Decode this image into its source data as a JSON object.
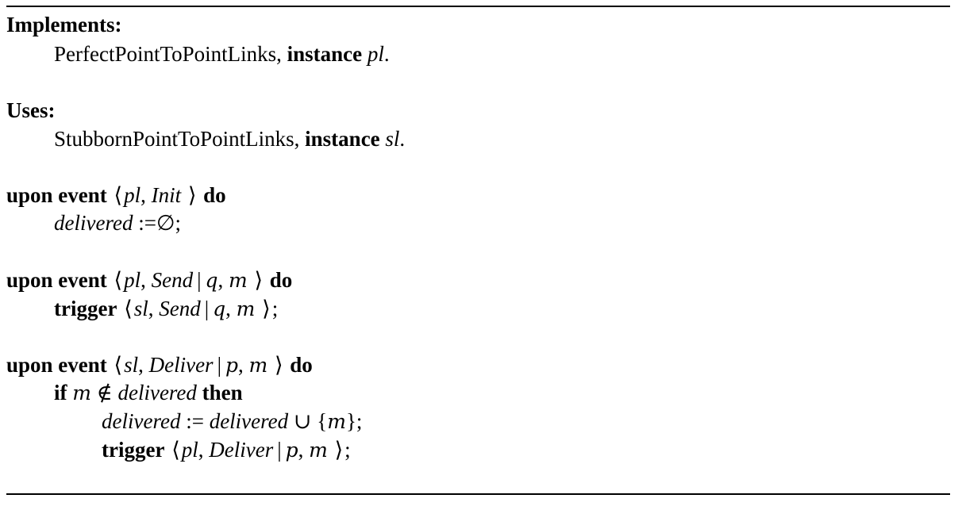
{
  "implements": {
    "heading": "Implements:",
    "name": "PerfectPointToPointLinks,",
    "kw": "instance",
    "inst": "pl",
    "end": "."
  },
  "uses": {
    "heading": "Uses:",
    "name": "StubbornPointToPointLinks,",
    "kw": "instance",
    "inst": "sl",
    "end": "."
  },
  "kw": {
    "upon_event": "upon event",
    "do": "do",
    "trigger": "trigger",
    "if": "if",
    "then": "then"
  },
  "sym": {
    "open": "⟨",
    "close": "⟩",
    "bar": "|",
    "comma": ",",
    "semi": ";",
    "assign": ":=",
    "empty": "∅",
    "notin": "∉",
    "union": "∪",
    "lbrace": "{",
    "rbrace": "}"
  },
  "vars": {
    "pl": "pl",
    "sl": "sl",
    "q": "q",
    "m": "m",
    "p": "p",
    "delivered": "delivered"
  },
  "events": {
    "init": "Init",
    "send": "Send",
    "deliver": "Deliver"
  }
}
